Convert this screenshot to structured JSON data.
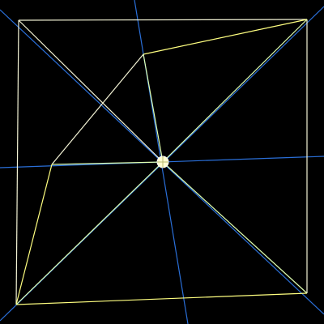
{
  "colors": {
    "background": "#000000",
    "square_edge": "#f4f4d6",
    "folded_edge": "#ffff80",
    "crease_line": "#e0ffb0",
    "axis_line": "#2a6fd8",
    "center_handle_fill": "#ffffd0",
    "center_handle_stroke": "#ffffff"
  },
  "icons": {
    "center_handle": "pivot-handle-icon"
  }
}
